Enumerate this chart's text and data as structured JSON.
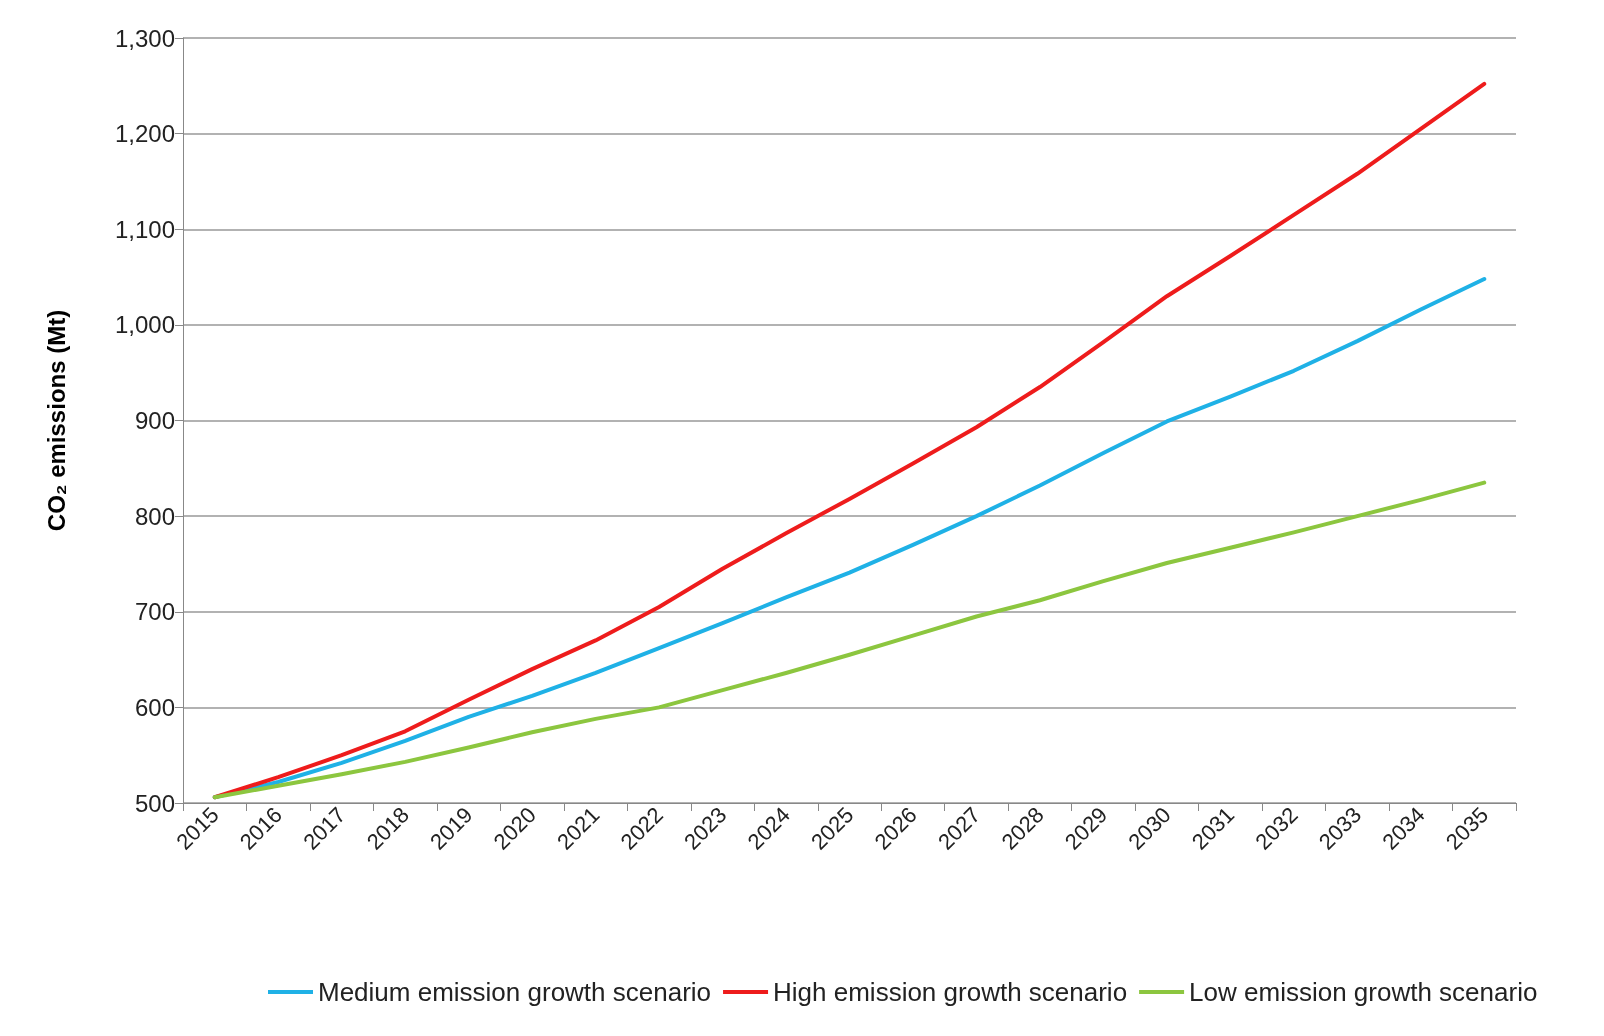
{
  "chart_data": {
    "type": "line",
    "ylabel": "CO₂ emissions (Mt)",
    "categories": [
      "2015",
      "2016",
      "2017",
      "2018",
      "2019",
      "2020",
      "2021",
      "2022",
      "2023",
      "2024",
      "2025",
      "2026",
      "2027",
      "2028",
      "2029",
      "2030",
      "2031",
      "2032",
      "2033",
      "2034",
      "2035"
    ],
    "series": [
      {
        "name": "Medium emission growth scenario",
        "color": "#1fb1e6",
        "values": [
          506,
          522,
          542,
          565,
          590,
          612,
          636,
          662,
          688,
          715,
          741,
          770,
          800,
          832,
          866,
          899,
          925,
          952,
          983,
          1016,
          1048
        ]
      },
      {
        "name": "High emission growth scenario",
        "color": "#ee1c1c",
        "values": [
          506,
          527,
          550,
          575,
          608,
          640,
          670,
          705,
          745,
          782,
          818,
          855,
          893,
          935,
          982,
          1030,
          1072,
          1115,
          1158,
          1205,
          1252
        ]
      },
      {
        "name": "Low emission growth scenario",
        "color": "#8cc63f",
        "values": [
          506,
          518,
          530,
          543,
          558,
          574,
          588,
          600,
          618,
          636,
          655,
          675,
          695,
          712,
          732,
          751,
          767,
          783,
          800,
          817,
          835
        ]
      }
    ],
    "ylim": [
      500,
      1300
    ],
    "yticks": [
      500,
      600,
      700,
      800,
      900,
      {
        "value": 1000,
        "label": "1,000"
      },
      {
        "value": 1100,
        "label": "1,100"
      },
      {
        "value": 1200,
        "label": "1,200"
      },
      {
        "value": 1300,
        "label": "1,300"
      }
    ],
    "grid": "y",
    "legend": "bottom",
    "marker": "none",
    "line_style": "solid"
  }
}
